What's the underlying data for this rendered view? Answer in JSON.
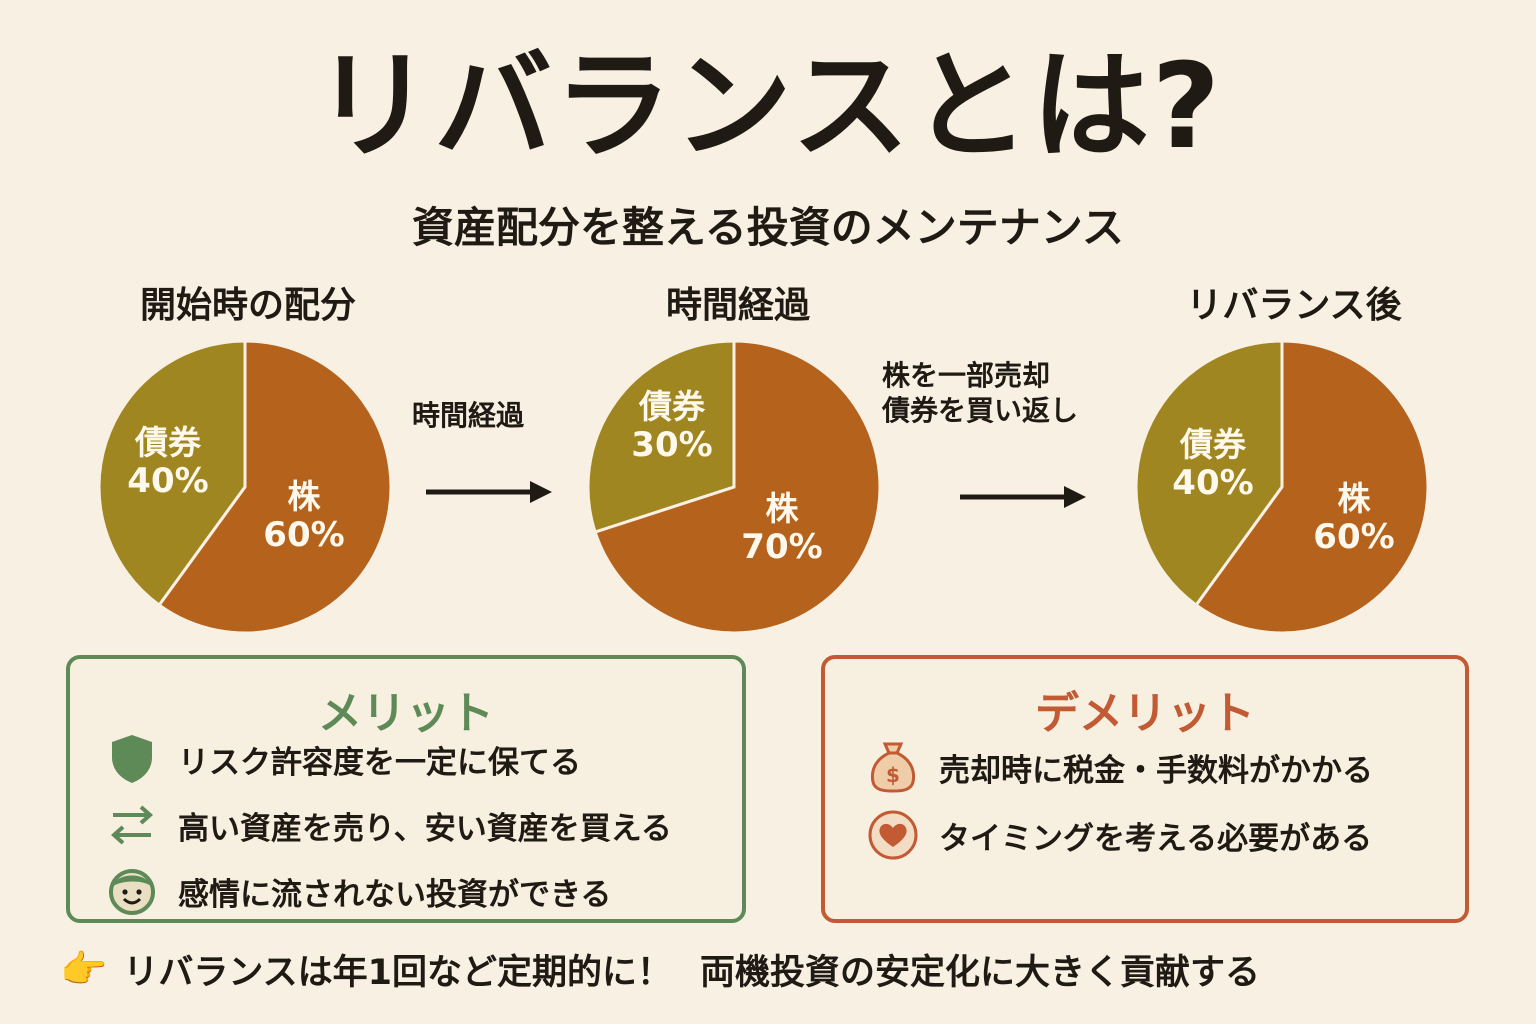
{
  "title": "リバランスとは?",
  "subtitle": "資産配分を整える投資のメンテナンス",
  "stages": [
    {
      "title": "開始時の配分",
      "stock_label": "株",
      "stock_pct": "60%",
      "bond_label": "債券",
      "bond_pct": "40%",
      "stock_share": 0.6
    },
    {
      "title": "時間経過",
      "stock_label": "株",
      "stock_pct": "70%",
      "bond_label": "債券",
      "bond_pct": "30%",
      "stock_share": 0.7
    },
    {
      "title": "リバランス後",
      "stock_label": "株",
      "stock_pct": "60%",
      "bond_label": "債券",
      "bond_pct": "40%",
      "stock_share": 0.6
    }
  ],
  "arrow1_text": "時間経過",
  "arrow2_text": [
    "株を一部売却",
    "債券を買い返し"
  ],
  "merit": {
    "title": "メリット",
    "items": [
      {
        "text": "リスク許容度を一定に保てる",
        "icon": "shield-icon"
      },
      {
        "text": "高い資産を売り、安い資産を買える",
        "icon": "swap-arrows-icon"
      },
      {
        "text": "感情に流されない投資ができる",
        "icon": "smiley-face-icon"
      }
    ]
  },
  "demerit": {
    "title": "デメリット",
    "items": [
      {
        "text": "売却時に税金・手数料がかかる",
        "icon": "money-bag-icon"
      },
      {
        "text": "タイミングを考える必要がある",
        "icon": "heart-icon"
      }
    ]
  },
  "footer": {
    "part1": "リバランスは年1回など定期的に！",
    "part2": "両機投資の安定化に大きく貢献する",
    "icon": "pointing-hand-icon"
  },
  "colors": {
    "stock": "#b5621c",
    "bond": "#a08620",
    "merit": "#5e8a58",
    "demerit": "#c25a33",
    "background": "#f8f1e3"
  }
}
